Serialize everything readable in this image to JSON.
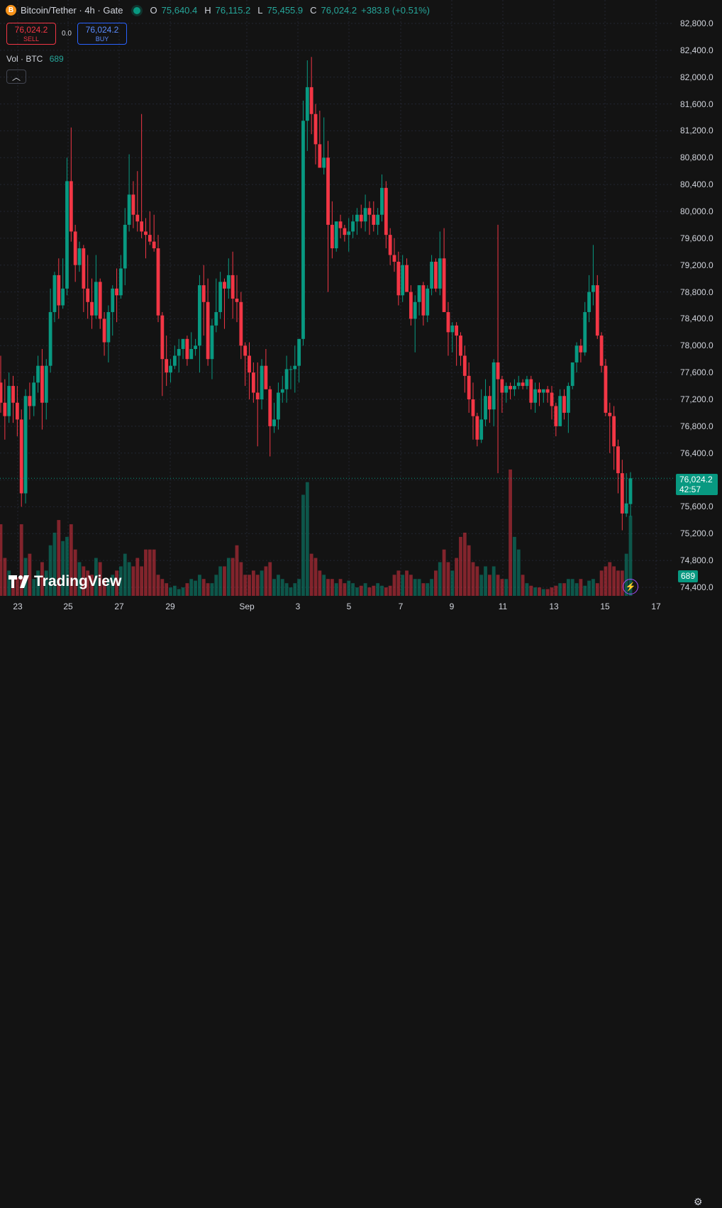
{
  "legend": {
    "coin_symbol": "B",
    "title": "Bitcoin/Tether · 4h · Gate",
    "open_label": "O",
    "open": "75,640.4",
    "high_label": "H",
    "high": "76,115.2",
    "low_label": "L",
    "low": "75,455.9",
    "close_label": "C",
    "close": "76,024.2",
    "change": "+383.8 (+0.51%)"
  },
  "trade": {
    "sell_price": "76,024.2",
    "sell_label": "SELL",
    "spread": "0.0",
    "buy_price": "76,024.2",
    "buy_label": "BUY"
  },
  "volume_legend": {
    "label": "Vol · BTC",
    "value": "689"
  },
  "collapse_icon": "chevron-up-icon",
  "last_price": {
    "price": "76,024.2",
    "countdown": "42:57"
  },
  "volume_badge": "689",
  "branding": {
    "logo_text": "TradingView"
  },
  "colors": {
    "up": "#089981",
    "down": "#f23645",
    "background": "#131313",
    "grid": "#2a2e39",
    "accent": "#2962ff"
  },
  "chart_data": {
    "type": "candlestick",
    "price_axis_ticks": [
      "82,800.0",
      "82,400.0",
      "82,000.0",
      "81,600.0",
      "81,200.0",
      "80,800.0",
      "80,400.0",
      "80,000.0",
      "79,600.0",
      "79,200.0",
      "78,800.0",
      "78,400.0",
      "78,000.0",
      "77,600.0",
      "77,200.0",
      "76,800.0",
      "76,400.0",
      "76,000.0",
      "75,600.0",
      "75,200.0",
      "74,800.0",
      "74,400.0"
    ],
    "time_axis_ticks": [
      "23",
      "25",
      "27",
      "29",
      "Sep",
      "3",
      "5",
      "7",
      "9",
      "11",
      "13",
      "15",
      "17"
    ],
    "ylim": [
      74300,
      83000
    ],
    "candles_ohlc": [
      [
        77450,
        77850,
        77000,
        77150
      ],
      [
        77150,
        77500,
        76600,
        76950
      ],
      [
        76950,
        77600,
        76850,
        77400
      ],
      [
        77400,
        77550,
        76850,
        77150
      ],
      [
        77150,
        77400,
        76650,
        76900
      ],
      [
        76900,
        77050,
        75600,
        75800
      ],
      [
        75800,
        77350,
        75650,
        77250
      ],
      [
        77250,
        77450,
        76900,
        77100
      ],
      [
        77100,
        77550,
        76950,
        77450
      ],
      [
        77450,
        77850,
        77300,
        77700
      ],
      [
        77700,
        77950,
        76750,
        77150
      ],
      [
        77150,
        77800,
        76900,
        77700
      ],
      [
        77700,
        78850,
        77600,
        78500
      ],
      [
        78500,
        79100,
        78350,
        79050
      ],
      [
        79050,
        79300,
        78400,
        78600
      ],
      [
        78600,
        79300,
        78550,
        78850
      ],
      [
        78850,
        80800,
        78750,
        80450
      ],
      [
        80450,
        81250,
        79550,
        79700
      ],
      [
        79700,
        79800,
        78950,
        79200
      ],
      [
        79200,
        79550,
        79100,
        79450
      ],
      [
        79450,
        79500,
        78500,
        78850
      ],
      [
        78850,
        79350,
        78400,
        78650
      ],
      [
        78650,
        79000,
        78250,
        78450
      ],
      [
        78450,
        79350,
        78400,
        78950
      ],
      [
        78950,
        79000,
        78250,
        78400
      ],
      [
        78400,
        78500,
        77850,
        78050
      ],
      [
        78050,
        78600,
        77750,
        78500
      ],
      [
        78500,
        78900,
        78150,
        78850
      ],
      [
        78850,
        79150,
        78350,
        78750
      ],
      [
        78750,
        79350,
        78700,
        79150
      ],
      [
        79150,
        80050,
        78900,
        79800
      ],
      [
        79800,
        80850,
        79700,
        80250
      ],
      [
        80250,
        80450,
        79750,
        79950
      ],
      [
        79950,
        80600,
        79700,
        79850
      ],
      [
        79850,
        81450,
        79600,
        79700
      ],
      [
        79700,
        79900,
        79300,
        79650
      ],
      [
        79650,
        80000,
        79500,
        79550
      ],
      [
        79550,
        79950,
        79400,
        79450
      ],
      [
        79450,
        79650,
        78350,
        78450
      ],
      [
        78450,
        78500,
        77250,
        77800
      ],
      [
        77800,
        78150,
        77400,
        77600
      ],
      [
        77600,
        77800,
        77450,
        77700
      ],
      [
        77700,
        78000,
        77650,
        77850
      ],
      [
        77850,
        78100,
        77600,
        77950
      ],
      [
        77950,
        78050,
        77800,
        78100
      ],
      [
        78100,
        78150,
        77700,
        77800
      ],
      [
        77800,
        78200,
        77850,
        77950
      ],
      [
        77950,
        78100,
        77850,
        78000
      ],
      [
        78000,
        79050,
        77600,
        78900
      ],
      [
        78900,
        79200,
        78150,
        78650
      ],
      [
        78650,
        79000,
        77700,
        77800
      ],
      [
        77800,
        78400,
        77500,
        78300
      ],
      [
        78300,
        79000,
        78200,
        78500
      ],
      [
        78500,
        79100,
        78400,
        78950
      ],
      [
        78950,
        79000,
        78250,
        78850
      ],
      [
        78850,
        79300,
        78700,
        79050
      ],
      [
        79050,
        79400,
        78400,
        78700
      ],
      [
        78700,
        79050,
        78350,
        78650
      ],
      [
        78650,
        78800,
        77800,
        78000
      ],
      [
        78000,
        78050,
        77400,
        77850
      ],
      [
        77850,
        78050,
        77200,
        77600
      ],
      [
        77600,
        77750,
        77150,
        77300
      ],
      [
        77300,
        77750,
        76500,
        77200
      ],
      [
        77200,
        77800,
        77050,
        77700
      ],
      [
        77700,
        77950,
        77350,
        77350
      ],
      [
        77350,
        77400,
        76350,
        76800
      ],
      [
        76800,
        77150,
        76700,
        76900
      ],
      [
        76900,
        77450,
        76750,
        77300
      ],
      [
        77300,
        77550,
        77150,
        77350
      ],
      [
        77350,
        77850,
        77150,
        77650
      ],
      [
        77650,
        77700,
        77350,
        77650
      ],
      [
        77650,
        78000,
        77300,
        77700
      ],
      [
        77700,
        78100,
        77450,
        78100
      ],
      [
        78100,
        81650,
        78000,
        81350
      ],
      [
        81350,
        82250,
        80900,
        81850
      ],
      [
        81850,
        82300,
        81150,
        81450
      ],
      [
        81450,
        81600,
        80700,
        81000
      ],
      [
        81000,
        81500,
        80650,
        80650
      ],
      [
        80650,
        81400,
        80550,
        80800
      ],
      [
        80800,
        81050,
        78800,
        79800
      ],
      [
        79800,
        80150,
        79300,
        79450
      ],
      [
        79450,
        79850,
        79400,
        79850
      ],
      [
        79850,
        79950,
        79600,
        79750
      ],
      [
        79750,
        79800,
        79550,
        79650
      ],
      [
        79650,
        79900,
        79400,
        79700
      ],
      [
        79700,
        79950,
        79600,
        79850
      ],
      [
        79850,
        80050,
        79650,
        79950
      ],
      [
        79950,
        80100,
        79750,
        79850
      ],
      [
        79850,
        80250,
        79700,
        80050
      ],
      [
        80050,
        80150,
        79650,
        79950
      ],
      [
        79950,
        80150,
        79700,
        79800
      ],
      [
        79800,
        80050,
        79650,
        79950
      ],
      [
        79950,
        80550,
        79850,
        80350
      ],
      [
        80350,
        80450,
        79450,
        79650
      ],
      [
        79650,
        79750,
        79200,
        79350
      ],
      [
        79350,
        79600,
        79100,
        79250
      ],
      [
        79250,
        79400,
        78600,
        78750
      ],
      [
        78750,
        79350,
        78650,
        79200
      ],
      [
        79200,
        79300,
        78800,
        78800
      ],
      [
        78800,
        78900,
        78300,
        78400
      ],
      [
        78400,
        78750,
        77900,
        78650
      ],
      [
        78650,
        78900,
        78450,
        78900
      ],
      [
        78900,
        78950,
        78300,
        78450
      ],
      [
        78450,
        78900,
        78350,
        78850
      ],
      [
        78850,
        79350,
        78750,
        79250
      ],
      [
        79250,
        79300,
        78800,
        78850
      ],
      [
        78850,
        79700,
        78750,
        79300
      ],
      [
        79300,
        79750,
        78950,
        78500
      ],
      [
        78500,
        78650,
        77850,
        78200
      ],
      [
        78200,
        78350,
        77900,
        78300
      ],
      [
        78300,
        78350,
        77700,
        78150
      ],
      [
        78150,
        78200,
        77700,
        77850
      ],
      [
        77850,
        78000,
        77300,
        77550
      ],
      [
        77550,
        77750,
        77000,
        77200
      ],
      [
        77200,
        77450,
        76600,
        76950
      ],
      [
        76950,
        77000,
        76500,
        76600
      ],
      [
        76600,
        77350,
        76550,
        76900
      ],
      [
        76900,
        77500,
        76800,
        77250
      ],
      [
        77250,
        77400,
        76850,
        77050
      ],
      [
        77050,
        77800,
        76800,
        77750
      ],
      [
        77750,
        79800,
        76100,
        77500
      ],
      [
        77500,
        77550,
        77000,
        77300
      ],
      [
        77300,
        77450,
        77150,
        77400
      ],
      [
        77400,
        77450,
        77200,
        77350
      ],
      [
        77350,
        77500,
        77250,
        77400
      ],
      [
        77400,
        77550,
        77350,
        77450
      ],
      [
        77450,
        77500,
        77350,
        77400
      ],
      [
        77400,
        77550,
        77350,
        77500
      ],
      [
        77500,
        77550,
        77050,
        77150
      ],
      [
        77150,
        77450,
        77000,
        77350
      ],
      [
        77350,
        77450,
        77100,
        77300
      ],
      [
        77300,
        77350,
        77150,
        77350
      ],
      [
        77350,
        77400,
        77150,
        77300
      ],
      [
        77300,
        77400,
        76900,
        77100
      ],
      [
        77100,
        77150,
        76650,
        76800
      ],
      [
        76800,
        77350,
        76800,
        77250
      ],
      [
        77250,
        77350,
        76900,
        77000
      ],
      [
        77000,
        77450,
        76700,
        77400
      ],
      [
        77400,
        77750,
        77350,
        77750
      ],
      [
        77750,
        78050,
        77600,
        78000
      ],
      [
        78000,
        78100,
        77750,
        77900
      ],
      [
        77900,
        78650,
        77850,
        78500
      ],
      [
        78500,
        79050,
        78350,
        78800
      ],
      [
        78800,
        79500,
        78600,
        78900
      ],
      [
        78900,
        79050,
        78100,
        78150
      ],
      [
        78150,
        78200,
        77600,
        77700
      ],
      [
        77700,
        77800,
        76950,
        77000
      ],
      [
        77000,
        77150,
        76400,
        76950
      ],
      [
        76950,
        77100,
        76150,
        76500
      ],
      [
        76500,
        76600,
        75800,
        76100
      ],
      [
        76100,
        76300,
        75250,
        75500
      ],
      [
        75500,
        76100,
        75450,
        75650
      ],
      [
        75640.4,
        76115.2,
        75455.9,
        76024.2
      ]
    ],
    "volume": [
      85,
      45,
      30,
      20,
      22,
      85,
      45,
      50,
      20,
      30,
      40,
      30,
      60,
      75,
      90,
      65,
      70,
      85,
      55,
      40,
      35,
      30,
      25,
      45,
      40,
      20,
      20,
      25,
      30,
      35,
      50,
      40,
      35,
      45,
      35,
      55,
      55,
      55,
      25,
      20,
      15,
      10,
      12,
      8,
      10,
      15,
      20,
      18,
      25,
      20,
      15,
      15,
      25,
      35,
      35,
      45,
      45,
      60,
      40,
      25,
      25,
      30,
      25,
      30,
      35,
      40,
      20,
      25,
      20,
      15,
      10,
      15,
      20,
      120,
      135,
      50,
      45,
      30,
      25,
      20,
      20,
      15,
      20,
      15,
      18,
      15,
      10,
      12,
      15,
      10,
      12,
      15,
      12,
      10,
      12,
      25,
      30,
      25,
      30,
      25,
      20,
      20,
      15,
      15,
      20,
      30,
      40,
      55,
      40,
      30,
      45,
      70,
      75,
      60,
      40,
      35,
      25,
      35,
      25,
      35,
      25,
      20,
      20,
      150,
      70,
      55,
      25,
      15,
      12,
      10,
      10,
      8,
      8,
      10,
      12,
      15,
      15,
      20,
      20,
      15,
      20,
      12,
      18,
      20,
      15,
      30,
      35,
      40,
      35,
      30,
      30,
      50,
      95,
      85,
      30,
      35
    ]
  }
}
